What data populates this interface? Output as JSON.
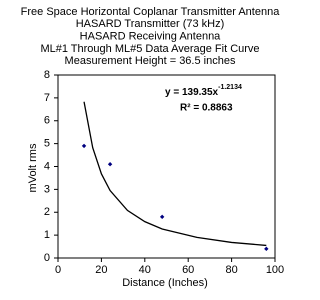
{
  "chart_data": {
    "type": "scatter",
    "title_lines": [
      "Free Space Horizontal Coplanar Transmitter Antenna",
      "HASARD Transmitter (73 kHz)",
      "HASARD Receiving Antenna",
      "ML#1 Through ML#5 Data Average Fit Curve",
      "Measurement Height = 36.5 inches"
    ],
    "x_label": "Distance (Inches)",
    "y_label": "mVolt rms",
    "equation": "y = 139.35x",
    "equation_exponent": "-1.2134",
    "r_squared": "R² = 0.8863",
    "series": [
      {
        "color": "#000080",
        "x": [
          12,
          24,
          48,
          96
        ],
        "values": [
          4.9,
          4.1,
          1.8,
          0.4
        ]
      }
    ],
    "trendline": {
      "color": "#000000",
      "x": [
        12,
        16,
        20,
        24,
        32,
        40,
        48,
        64,
        80,
        96
      ],
      "values": [
        6.83,
        4.82,
        3.68,
        2.95,
        2.08,
        1.59,
        1.27,
        0.9,
        0.68,
        0.55
      ]
    },
    "xlim": [
      0,
      100
    ],
    "xticks": [
      0,
      20,
      40,
      60,
      80,
      100
    ],
    "ylim": [
      0,
      8
    ],
    "yticks": [
      0,
      1,
      2,
      3,
      4,
      5,
      6,
      7,
      8
    ],
    "grid": false
  }
}
